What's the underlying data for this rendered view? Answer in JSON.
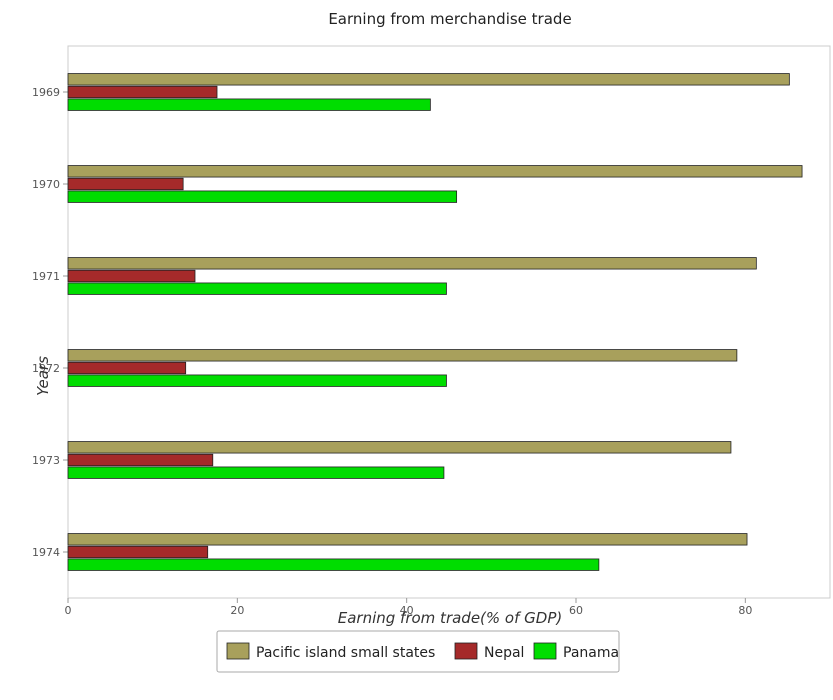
{
  "chart_data": {
    "type": "bar",
    "orientation": "horizontal",
    "title": "Earning from merchandise trade",
    "xlabel": "Earning from trade(% of GDP)",
    "ylabel": "Years",
    "categories": [
      "1969",
      "1970",
      "1971",
      "1972",
      "1973",
      "1974"
    ],
    "xlim": [
      0,
      90
    ],
    "xticks": [
      0,
      20,
      40,
      60,
      80
    ],
    "grid": false,
    "legend_position": "bottom",
    "series": [
      {
        "name": "Pacific island small states",
        "color": "#a8a05c",
        "values": [
          85.2,
          86.7,
          81.3,
          79.0,
          78.3,
          80.2
        ]
      },
      {
        "name": "Nepal",
        "color": "#a52a2a",
        "values": [
          17.6,
          13.6,
          15.0,
          13.9,
          17.1,
          16.5
        ]
      },
      {
        "name": "Panama",
        "color": "#00dd00",
        "values": [
          42.8,
          45.9,
          44.7,
          44.7,
          44.4,
          62.7
        ]
      }
    ]
  }
}
